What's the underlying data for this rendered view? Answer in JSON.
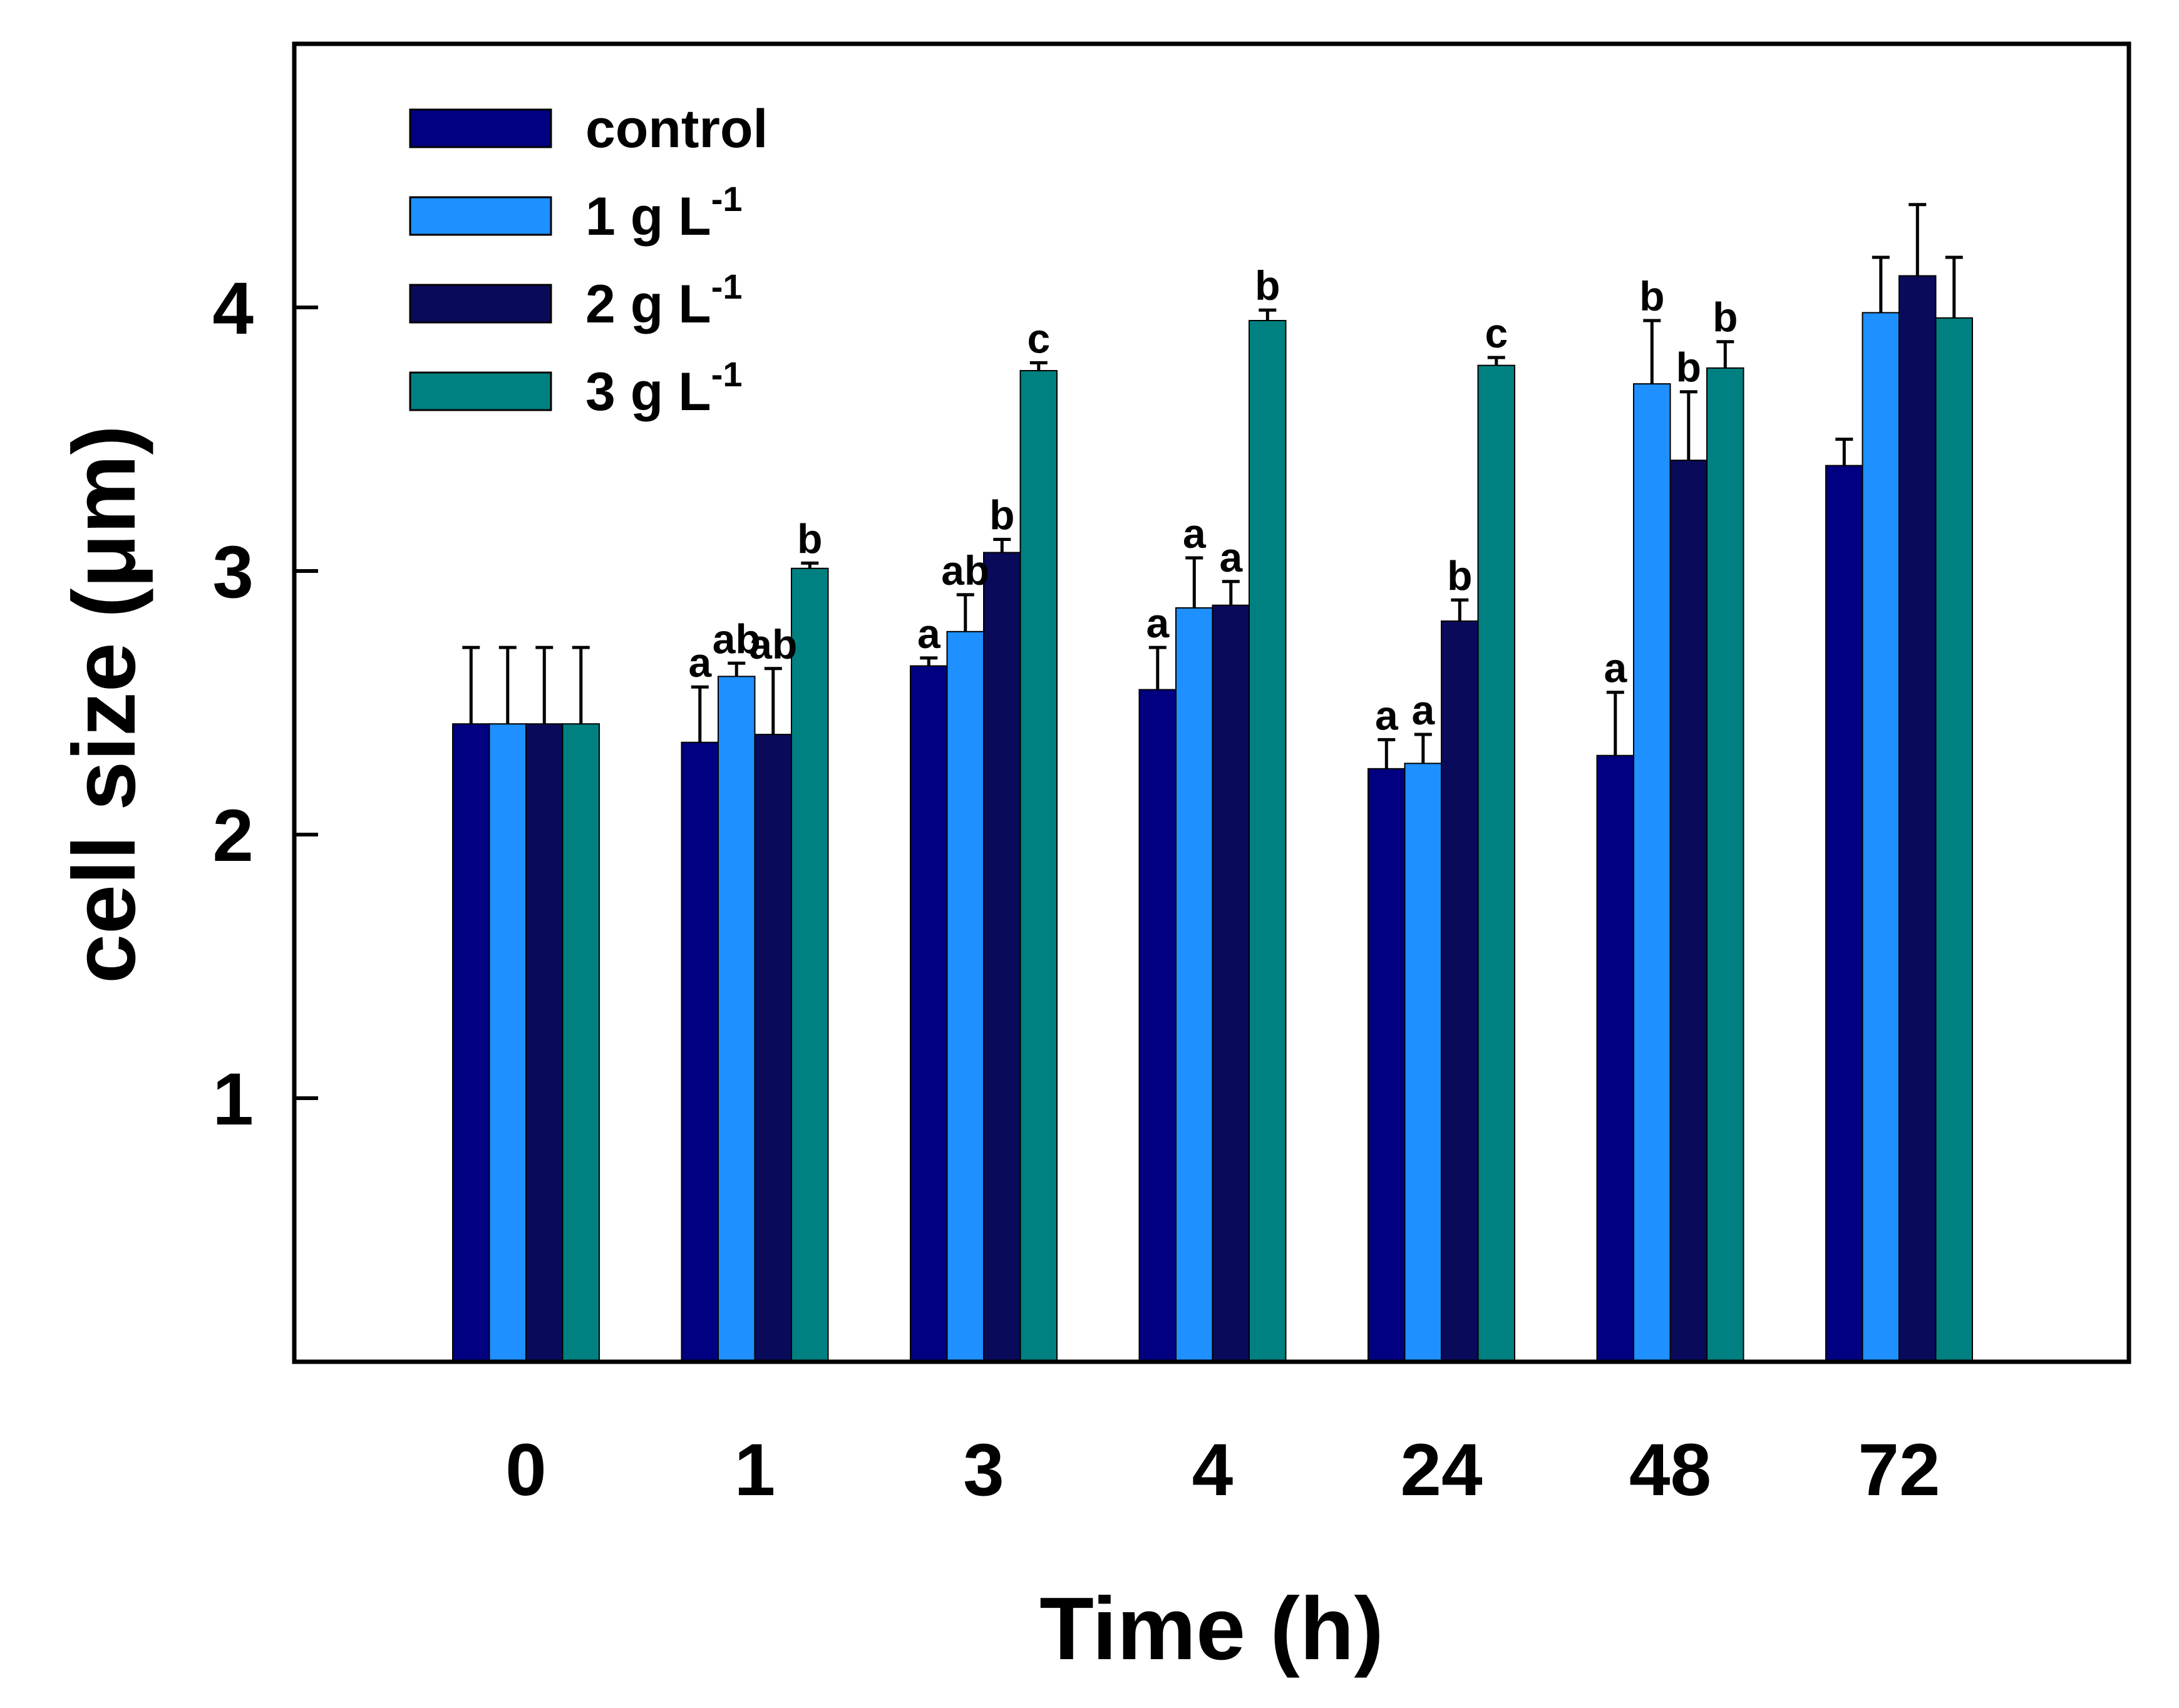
{
  "chart_data": {
    "type": "bar",
    "title": "",
    "xlabel": "Time (h)",
    "ylabel": "cell size (μm)",
    "ylim": [
      0,
      5
    ],
    "yticks": [
      "1",
      "2",
      "3",
      "4"
    ],
    "categories": [
      "0",
      "1",
      "3",
      "4",
      "24",
      "48",
      "72"
    ],
    "series": [
      {
        "name": "control",
        "legend_base": "control",
        "legend_sup": "",
        "color": "#000080",
        "values": [
          2.42,
          2.35,
          2.64,
          2.55,
          2.25,
          2.3,
          3.4
        ],
        "errors": [
          0.29,
          0.21,
          0.03,
          0.16,
          0.11,
          0.24,
          0.1
        ],
        "labels": [
          "",
          "a",
          "a",
          "a",
          "a",
          "a",
          ""
        ]
      },
      {
        "name": "1 g L-1",
        "legend_base": "1 g L",
        "legend_sup": "-1",
        "color": "#1E90FF",
        "values": [
          2.42,
          2.6,
          2.77,
          2.86,
          2.27,
          3.71,
          3.98
        ],
        "errors": [
          0.29,
          0.05,
          0.14,
          0.19,
          0.11,
          0.24,
          0.21
        ],
        "labels": [
          "",
          "ab",
          "ab",
          "a",
          "a",
          "b",
          ""
        ]
      },
      {
        "name": "2 g L-1",
        "legend_base": "2 g L",
        "legend_sup": "-1",
        "color": "#0A0A5A",
        "values": [
          2.42,
          2.38,
          3.07,
          2.87,
          2.81,
          3.42,
          4.12
        ],
        "errors": [
          0.29,
          0.25,
          0.05,
          0.09,
          0.08,
          0.26,
          0.27
        ],
        "labels": [
          "",
          "ab",
          "b",
          "a",
          "b",
          "b",
          ""
        ]
      },
      {
        "name": "3 g L-1",
        "legend_base": "3 g L",
        "legend_sup": "-1",
        "color": "#008080",
        "values": [
          2.42,
          3.01,
          3.76,
          3.95,
          3.78,
          3.77,
          3.96
        ],
        "errors": [
          0.29,
          0.02,
          0.03,
          0.04,
          0.03,
          0.1,
          0.23
        ],
        "labels": [
          "",
          "b",
          "c",
          "b",
          "c",
          "b",
          ""
        ]
      }
    ],
    "legend_position": "top-left",
    "grid": false
  }
}
